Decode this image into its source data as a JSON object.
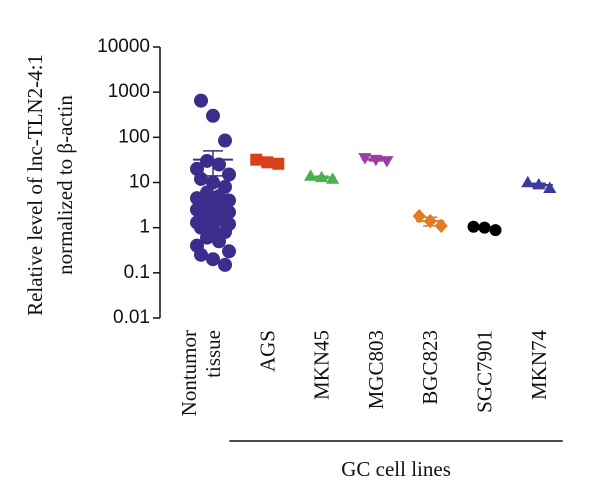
{
  "chart_data": {
    "type": "dot",
    "ylabel": [
      "Relative level of lnc-TLN2-4:1",
      "normalized to β-actin"
    ],
    "log_scale": true,
    "ylim": [
      0.01,
      10000
    ],
    "yticks": [
      0.01,
      0.1,
      1,
      10,
      100,
      1000,
      10000
    ],
    "categories": [
      "Nontumor tissue",
      "AGS",
      "MKN45",
      "MGC803",
      "BGC823",
      "SGC7901",
      "MKN74"
    ],
    "group_label": "GC cell lines",
    "group_range": [
      1,
      6
    ],
    "groups": [
      {
        "color": "#3b2d8c",
        "marker": "circle",
        "mean": 32,
        "error": 18,
        "values": [
          650,
          300,
          85,
          30,
          25,
          20,
          15,
          12,
          10,
          8,
          6,
          5,
          4.5,
          4,
          4,
          3.5,
          3,
          3,
          2.8,
          2.5,
          2.2,
          2,
          2,
          1.8,
          1.6,
          1.5,
          1.3,
          1.2,
          1.0,
          0.9,
          0.8,
          0.6,
          0.5,
          0.4,
          0.3,
          0.25,
          0.2,
          0.15
        ]
      },
      {
        "color": "#d8401c",
        "marker": "square",
        "mean": 29,
        "error": 2,
        "values": [
          32,
          28,
          26
        ]
      },
      {
        "color": "#4caf50",
        "marker": "triangle",
        "mean": 13,
        "error": 0.8,
        "values": [
          14,
          13,
          12
        ]
      },
      {
        "color": "#9b3f9e",
        "marker": "triangle-down",
        "mean": 32,
        "error": 2,
        "values": [
          35,
          32,
          30
        ]
      },
      {
        "color": "#e07b1f",
        "marker": "diamond",
        "mean": 1.4,
        "error": 0.3,
        "values": [
          1.8,
          1.4,
          1.1
        ]
      },
      {
        "color": "#000000",
        "marker": "circle",
        "mean": 0.98,
        "error": 0.05,
        "values": [
          1.05,
          1.0,
          0.88
        ]
      },
      {
        "color": "#3a3a9e",
        "marker": "triangle",
        "mean": 8.8,
        "error": 0.8,
        "values": [
          10,
          9,
          7.5
        ]
      }
    ]
  }
}
